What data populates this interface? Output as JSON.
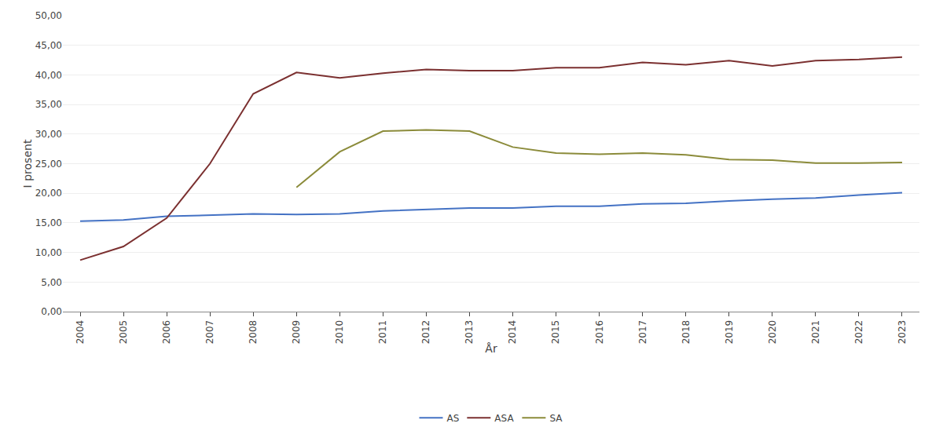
{
  "chart_data": {
    "type": "line",
    "x": [
      2004,
      2005,
      2006,
      2007,
      2008,
      2009,
      2010,
      2011,
      2012,
      2013,
      2014,
      2015,
      2016,
      2017,
      2018,
      2019,
      2020,
      2021,
      2022,
      2023
    ],
    "series": [
      {
        "name": "AS",
        "color": "#4472C4",
        "values": [
          15.3,
          15.5,
          16.1,
          16.3,
          16.5,
          16.4,
          16.5,
          17.0,
          17.3,
          17.5,
          17.5,
          17.8,
          17.8,
          18.2,
          18.3,
          18.7,
          19.0,
          19.2,
          19.7,
          20.1
        ]
      },
      {
        "name": "ASA",
        "color": "#7B3030",
        "values": [
          8.7,
          11.0,
          15.8,
          25.0,
          36.8,
          40.4,
          39.5,
          40.3,
          40.9,
          40.7,
          40.7,
          41.2,
          41.2,
          42.1,
          41.7,
          42.4,
          41.5,
          42.4,
          42.6,
          43.0
        ]
      },
      {
        "name": "SA",
        "color": "#8B8B3A",
        "values": [
          null,
          null,
          null,
          null,
          null,
          21.0,
          27.0,
          30.5,
          30.7,
          30.5,
          27.8,
          26.8,
          26.6,
          26.8,
          26.5,
          25.7,
          25.6,
          25.1,
          25.1,
          25.2
        ]
      }
    ],
    "xlabel": "År",
    "ylabel": "I prosent",
    "xlim": [
      2003.6,
      2023.4
    ],
    "xticks": [
      2004,
      2005,
      2006,
      2007,
      2008,
      2009,
      2010,
      2011,
      2012,
      2013,
      2014,
      2015,
      2016,
      2017,
      2018,
      2019,
      2020,
      2021,
      2022,
      2023
    ],
    "ylim": [
      0,
      50
    ],
    "yticks": [
      {
        "value": 0,
        "label": "0,00"
      },
      {
        "value": 5,
        "label": "5,00"
      },
      {
        "value": 10,
        "label": "10,00"
      },
      {
        "value": 15,
        "label": "15,00"
      },
      {
        "value": 20,
        "label": "20,00"
      },
      {
        "value": 25,
        "label": "25,00"
      },
      {
        "value": 30,
        "label": "30,00"
      },
      {
        "value": 35,
        "label": "35,00"
      },
      {
        "value": 40,
        "label": "40,00"
      },
      {
        "value": 45,
        "label": "45,00"
      },
      {
        "value": 50,
        "label": "50,00"
      }
    ],
    "grid": true,
    "legend": "bottom"
  }
}
